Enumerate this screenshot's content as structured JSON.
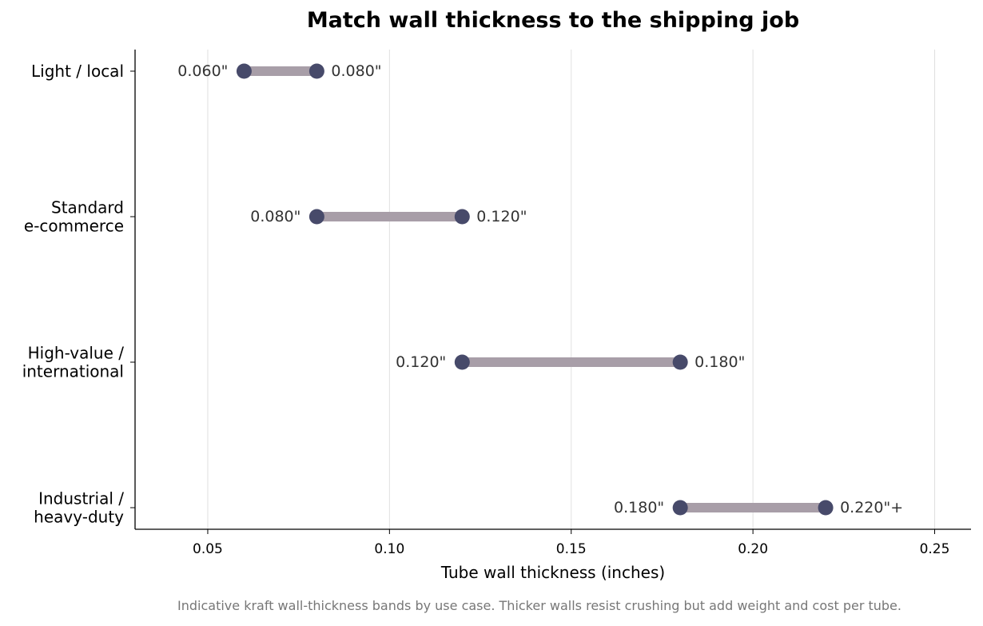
{
  "chart_data": {
    "type": "range-dot",
    "title": "Match wall thickness to the shipping job",
    "xlabel": "Tube wall thickness (inches)",
    "ylabel": "",
    "xlim": [
      0.03,
      0.26
    ],
    "xticks": [
      0.05,
      0.1,
      0.15,
      0.2,
      0.25
    ],
    "xtick_labels": [
      "0.05",
      "0.10",
      "0.15",
      "0.20",
      "0.25"
    ],
    "grid": "vertical",
    "categories": [
      [
        "Light / local"
      ],
      [
        "Standard",
        "e-commerce"
      ],
      [
        "High-value /",
        "international"
      ],
      [
        "Industrial /",
        "heavy-duty"
      ]
    ],
    "ranges": [
      {
        "low": 0.06,
        "high": 0.08,
        "low_label": "0.060\"",
        "high_label": "0.080\""
      },
      {
        "low": 0.08,
        "high": 0.12,
        "low_label": "0.080\"",
        "high_label": "0.120\""
      },
      {
        "low": 0.12,
        "high": 0.18,
        "low_label": "0.120\"",
        "high_label": "0.180\""
      },
      {
        "low": 0.18,
        "high": 0.22,
        "low_label": "0.180\"",
        "high_label": "0.220\"+"
      }
    ],
    "caption": "Indicative kraft wall-thickness bands by use case. Thicker walls resist crushing but add weight and cost per tube.",
    "colors": {
      "bar": "#a89ea8",
      "dot": "#474a6a",
      "grid": "#e0e0e0",
      "axis": "#000000",
      "value_label": "#333333",
      "caption": "#777777"
    }
  }
}
